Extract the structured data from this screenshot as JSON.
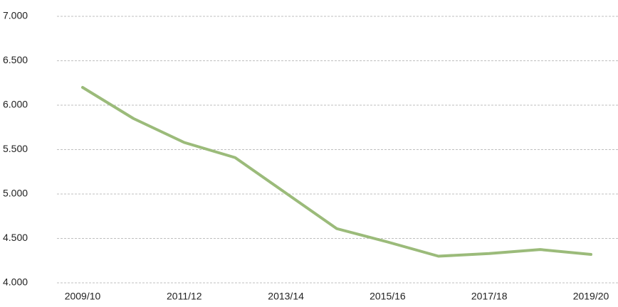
{
  "chart_data": {
    "type": "line",
    "categories": [
      "2009/10",
      null,
      "2011/12",
      null,
      "2013/14",
      null,
      "2015/16",
      null,
      "2017/18",
      null,
      "2019/20"
    ],
    "series": [
      {
        "name": null,
        "color": "#9bbb7a",
        "values": [
          6200,
          5850,
          5580,
          5410,
          5010,
          4610,
          4460,
          4300,
          4330,
          4375,
          4320
        ]
      }
    ],
    "ylim": [
      4000,
      7000
    ],
    "yticks": [
      {
        "value": 4000,
        "label": "4.000"
      },
      {
        "value": 4500,
        "label": "4.500"
      },
      {
        "value": 5000,
        "label": "5.000"
      },
      {
        "value": 5500,
        "label": "5.500"
      },
      {
        "value": 6000,
        "label": "6.000"
      },
      {
        "value": 6500,
        "label": "6.500"
      },
      {
        "value": 7000,
        "label": "7.000"
      }
    ],
    "grid": true
  }
}
